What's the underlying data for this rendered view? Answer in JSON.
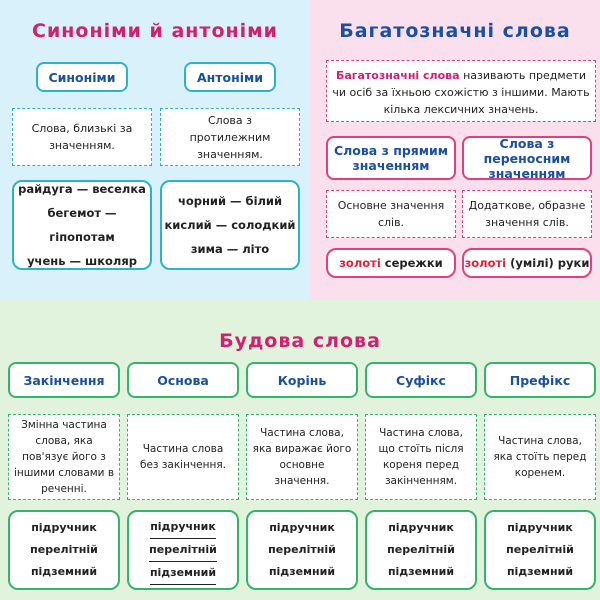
{
  "synonyms_antonyms": {
    "title": "Синоніми й антоніми",
    "columns": [
      {
        "heading": "Синоніми",
        "definition": "Слова, близькі за значенням.",
        "examples": [
          "райдуга — веселка",
          "бегемот — гіпопотам",
          "учень — школяр"
        ]
      },
      {
        "heading": "Антоніми",
        "definition": "Слова з протилежним значенням.",
        "examples": [
          "чорний — білий",
          "кислий — солодкий",
          "зима — літо"
        ]
      }
    ]
  },
  "polysemy": {
    "title": "Багатозначні слова",
    "definition": {
      "term": "Багатозначні слова",
      "text": "називають предмети чи осіб за їхньою схожістю з іншими. Мають кілька лексичних значень."
    },
    "columns": [
      {
        "heading": "Слова з прямим значенням",
        "definition": "Основне значення слів.",
        "example": {
          "highlight": "золоті",
          "rest": "сережки"
        }
      },
      {
        "heading": "Слова з переносним значенням",
        "definition": "Додаткове, образне значення слів.",
        "example": {
          "highlight": "золоті",
          "rest": "(умілі) руки"
        }
      }
    ]
  },
  "word_structure": {
    "title": "Будова слова",
    "columns": [
      {
        "heading": "Закінчення",
        "definition": "Змінна частина слова, яка пов'язує його з іншими словами в реченні.",
        "examples": [
          "підручник",
          "перелітній",
          "підземний"
        ]
      },
      {
        "heading": "Основа",
        "definition": "Частина слова без закінчення.",
        "examples": [
          "підручник",
          "перелітній",
          "підземний"
        ]
      },
      {
        "heading": "Корінь",
        "definition": "Частина слова, яка виражає його основне значення.",
        "examples": [
          "підручник",
          "перелітній",
          "підземний"
        ]
      },
      {
        "heading": "Суфікс",
        "definition": "Частина слова, що стоїть після кореня перед закінченням.",
        "examples": [
          "підручник",
          "перелітній",
          "підземний"
        ]
      },
      {
        "heading": "Префікс",
        "definition": "Частина слова, яка стоїть перед коренем.",
        "examples": [
          "підручник",
          "перелітній",
          "підземний"
        ]
      }
    ]
  }
}
